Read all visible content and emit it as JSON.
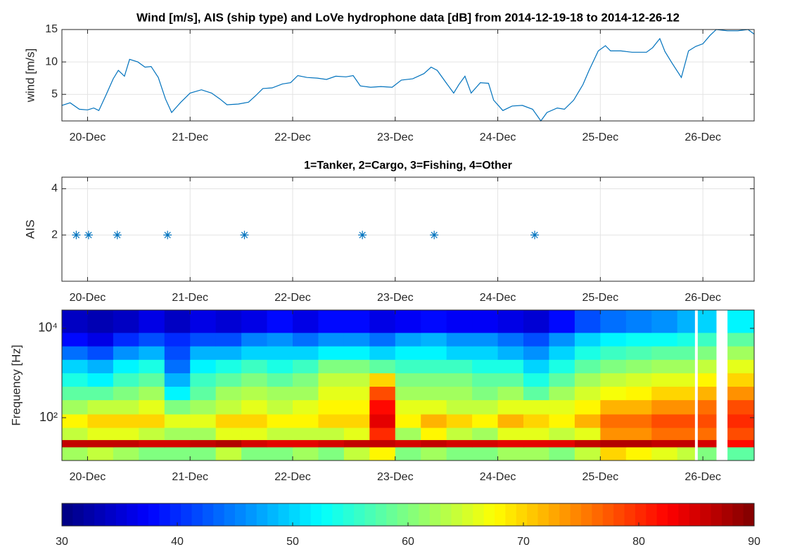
{
  "chart_data": [
    {
      "type": "line",
      "title": "Wind [m/s], AIS (ship type) and LoVe hydrophone data [dB] from 2014-12-19-18 to 2014-12-26-12",
      "ylabel": "wind [m/s]",
      "color": "#0072bd",
      "grid": true,
      "xlim": [
        19.75,
        26.5
      ],
      "xticks": [
        {
          "value": 20,
          "label": "20-Dec"
        },
        {
          "value": 21,
          "label": "21-Dec"
        },
        {
          "value": 22,
          "label": "22-Dec"
        },
        {
          "value": 23,
          "label": "23-Dec"
        },
        {
          "value": 24,
          "label": "24-Dec"
        },
        {
          "value": 25,
          "label": "25-Dec"
        },
        {
          "value": 26,
          "label": "26-Dec"
        }
      ],
      "ylim": [
        0.9,
        15
      ],
      "yticks": [
        5,
        10,
        15
      ],
      "x": [
        19.75,
        19.83,
        19.92,
        20.0,
        20.06,
        20.11,
        20.18,
        20.25,
        20.3,
        20.36,
        20.41,
        20.49,
        20.56,
        20.62,
        20.69,
        20.76,
        20.82,
        20.91,
        21.0,
        21.11,
        21.21,
        21.29,
        21.36,
        21.47,
        21.57,
        21.64,
        21.71,
        21.8,
        21.9,
        21.98,
        22.05,
        22.14,
        22.24,
        22.33,
        22.42,
        22.52,
        22.59,
        22.66,
        22.76,
        22.86,
        22.97,
        23.06,
        23.17,
        23.28,
        23.35,
        23.41,
        23.5,
        23.57,
        23.62,
        23.68,
        23.74,
        23.83,
        23.91,
        23.96,
        24.05,
        24.14,
        24.24,
        24.34,
        24.42,
        24.48,
        24.58,
        24.65,
        24.74,
        24.83,
        24.89,
        24.98,
        25.05,
        25.1,
        25.2,
        25.31,
        25.45,
        25.51,
        25.58,
        25.63,
        25.7,
        25.79,
        25.86,
        25.93,
        26.0,
        26.07,
        26.13,
        26.24,
        26.34,
        26.44,
        26.5
      ],
      "values": [
        3.3,
        3.7,
        2.7,
        2.6,
        2.9,
        2.5,
        4.9,
        7.4,
        8.7,
        7.8,
        10.4,
        10.0,
        9.2,
        9.3,
        7.6,
        4.3,
        2.2,
        3.8,
        5.2,
        5.7,
        5.2,
        4.3,
        3.4,
        3.5,
        3.8,
        4.8,
        5.9,
        6.0,
        6.6,
        6.8,
        7.9,
        7.6,
        7.5,
        7.3,
        7.8,
        7.7,
        7.9,
        6.3,
        6.1,
        6.2,
        6.1,
        7.2,
        7.4,
        8.2,
        9.2,
        8.7,
        6.7,
        5.2,
        6.5,
        7.8,
        5.2,
        6.8,
        6.7,
        4.1,
        2.5,
        3.2,
        3.3,
        2.7,
        0.9,
        2.2,
        2.9,
        2.7,
        4.1,
        6.5,
        8.7,
        11.7,
        12.5,
        11.7,
        11.7,
        11.5,
        11.5,
        12.2,
        13.6,
        11.6,
        9.8,
        7.6,
        11.7,
        12.4,
        12.8,
        14.1,
        15.0,
        14.8,
        14.8,
        15.0,
        14.3
      ]
    },
    {
      "type": "scatter",
      "title": "1=Tanker, 2=Cargo, 3=Fishing, 4=Other",
      "ylabel": "AIS",
      "color": "#0072bd",
      "grid": true,
      "xlim": [
        19.75,
        26.5
      ],
      "xticks": [
        {
          "value": 20,
          "label": "20-Dec"
        },
        {
          "value": 21,
          "label": "21-Dec"
        },
        {
          "value": 22,
          "label": "22-Dec"
        },
        {
          "value": 23,
          "label": "23-Dec"
        },
        {
          "value": 24,
          "label": "24-Dec"
        },
        {
          "value": 25,
          "label": "25-Dec"
        },
        {
          "value": 26,
          "label": "26-Dec"
        }
      ],
      "ylim": [
        0,
        4.5
      ],
      "yticks": [
        2,
        4
      ],
      "x": [
        19.89,
        20.01,
        20.29,
        20.78,
        21.53,
        22.68,
        23.38,
        24.36
      ],
      "values": [
        2,
        2,
        2,
        2,
        2,
        2,
        2,
        2
      ]
    },
    {
      "type": "heatmap",
      "ylabel": "Frequency [Hz]",
      "yscale": "log",
      "grid": false,
      "colormap": "jet",
      "xlim": [
        19.75,
        26.5
      ],
      "xticks": [
        {
          "value": 20,
          "label": "20-Dec"
        },
        {
          "value": 21,
          "label": "21-Dec"
        },
        {
          "value": 22,
          "label": "22-Dec"
        },
        {
          "value": 23,
          "label": "23-Dec"
        },
        {
          "value": 24,
          "label": "24-Dec"
        },
        {
          "value": 25,
          "label": "25-Dec"
        },
        {
          "value": 26,
          "label": "26-Dec"
        }
      ],
      "ylim": [
        11,
        25600
      ],
      "yticks": [
        {
          "value": 100,
          "label": "10²"
        },
        {
          "value": 10000,
          "label": "10⁴"
        }
      ],
      "time_edges": [
        19.75,
        20.0,
        20.25,
        20.5,
        20.75,
        21.0,
        21.25,
        21.5,
        21.75,
        22.0,
        22.25,
        22.5,
        22.75,
        23.0,
        23.25,
        23.5,
        23.75,
        24.0,
        24.25,
        24.5,
        24.75,
        25.0,
        25.25,
        25.5,
        25.75,
        25.92,
        25.95,
        26.13,
        26.24,
        26.5
      ],
      "freq_edges": [
        11,
        22,
        32,
        60,
        120,
        250,
        500,
        1000,
        2000,
        4000,
        8000,
        25600
      ],
      "values": [
        [
          62,
          64,
          62,
          60,
          60,
          60,
          64,
          60,
          60,
          62,
          60,
          64,
          68,
          60,
          62,
          60,
          60,
          62,
          62,
          60,
          64,
          70,
          68,
          66,
          64,
          null,
          60,
          null,
          58
        ],
        [
          86,
          86,
          86,
          85,
          85,
          86,
          87,
          85,
          84,
          84,
          85,
          86,
          86,
          85,
          86,
          85,
          85,
          84,
          84,
          84,
          86,
          87,
          87,
          86,
          86,
          null,
          85,
          null,
          82
        ],
        [
          64,
          66,
          66,
          64,
          62,
          62,
          66,
          66,
          64,
          64,
          64,
          66,
          80,
          62,
          68,
          64,
          62,
          66,
          66,
          64,
          66,
          74,
          74,
          76,
          76,
          null,
          76,
          null,
          78
        ],
        [
          68,
          70,
          70,
          70,
          66,
          66,
          70,
          70,
          68,
          68,
          70,
          70,
          84,
          68,
          72,
          70,
          68,
          72,
          70,
          68,
          72,
          76,
          76,
          78,
          78,
          null,
          78,
          null,
          80
        ],
        [
          62,
          64,
          64,
          66,
          60,
          62,
          64,
          66,
          64,
          66,
          68,
          68,
          82,
          66,
          66,
          64,
          64,
          66,
          66,
          66,
          68,
          72,
          72,
          74,
          74,
          null,
          76,
          null,
          78
        ],
        [
          58,
          58,
          60,
          62,
          52,
          58,
          62,
          63,
          62,
          62,
          66,
          66,
          78,
          62,
          62,
          62,
          60,
          62,
          58,
          62,
          65,
          67,
          68,
          70,
          70,
          null,
          72,
          null,
          74
        ],
        [
          54,
          52,
          56,
          58,
          48,
          56,
          58,
          60,
          58,
          60,
          64,
          64,
          70,
          60,
          60,
          60,
          58,
          58,
          54,
          58,
          62,
          64,
          65,
          66,
          66,
          null,
          68,
          null,
          70
        ],
        [
          50,
          48,
          52,
          54,
          44,
          52,
          54,
          56,
          54,
          56,
          60,
          60,
          58,
          56,
          56,
          56,
          54,
          54,
          50,
          54,
          58,
          60,
          61,
          62,
          62,
          null,
          64,
          null,
          66
        ],
        [
          44,
          42,
          46,
          48,
          42,
          48,
          48,
          50,
          50,
          50,
          52,
          52,
          50,
          52,
          52,
          50,
          50,
          48,
          46,
          50,
          54,
          56,
          57,
          58,
          58,
          null,
          60,
          null,
          62
        ],
        [
          38,
          36,
          40,
          42,
          40,
          42,
          42,
          45,
          46,
          44,
          46,
          46,
          44,
          47,
          48,
          46,
          46,
          44,
          42,
          46,
          50,
          52,
          53,
          53,
          54,
          null,
          56,
          null,
          58
        ],
        [
          34,
          33,
          34,
          36,
          34,
          36,
          35,
          36,
          38,
          36,
          38,
          38,
          36,
          37,
          38,
          37,
          37,
          36,
          35,
          38,
          42,
          44,
          45,
          46,
          48,
          null,
          50,
          null,
          52
        ]
      ],
      "clim": [
        30,
        90
      ],
      "cticks": [
        30,
        40,
        50,
        60,
        70,
        80,
        90
      ]
    }
  ]
}
